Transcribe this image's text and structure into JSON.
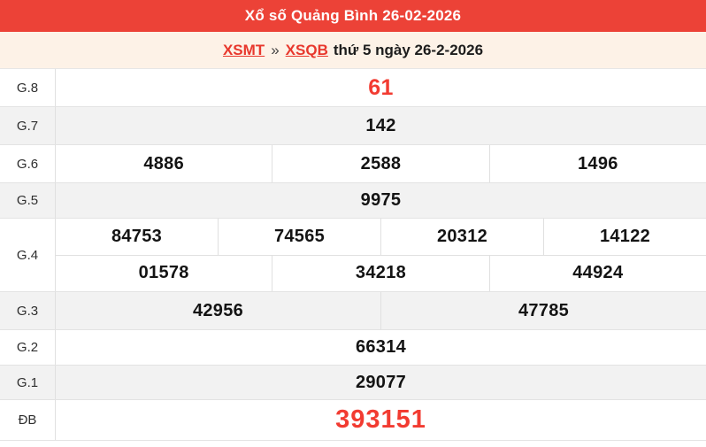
{
  "header": {
    "title": "Xổ số Quảng Bình 26-02-2026"
  },
  "breadcrumb": {
    "region_link": "XSMT",
    "separator": "»",
    "province_link": "XSQB",
    "date_text": "thứ 5 ngày 26-2-2026"
  },
  "colors": {
    "header_bg": "#ec4237",
    "accent_text": "#f23b31",
    "breadcrumb_bg": "#fdf2e7",
    "shade_row": "#f2f2f2",
    "border": "#e3e3e3"
  },
  "results": {
    "rows": [
      {
        "label": "G.8",
        "lines": [
          [
            "61"
          ]
        ]
      },
      {
        "label": "G.7",
        "lines": [
          [
            "142"
          ]
        ]
      },
      {
        "label": "G.6",
        "lines": [
          [
            "4886",
            "2588",
            "1496"
          ]
        ]
      },
      {
        "label": "G.5",
        "lines": [
          [
            "9975"
          ]
        ]
      },
      {
        "label": "G.4",
        "lines": [
          [
            "84753",
            "74565",
            "20312",
            "14122"
          ],
          [
            "01578",
            "34218",
            "44924"
          ]
        ]
      },
      {
        "label": "G.3",
        "lines": [
          [
            "42956",
            "47785"
          ]
        ]
      },
      {
        "label": "G.2",
        "lines": [
          [
            "66314"
          ]
        ]
      },
      {
        "label": "G.1",
        "lines": [
          [
            "29077"
          ]
        ]
      },
      {
        "label": "ĐB",
        "lines": [
          [
            "393151"
          ]
        ]
      }
    ]
  }
}
